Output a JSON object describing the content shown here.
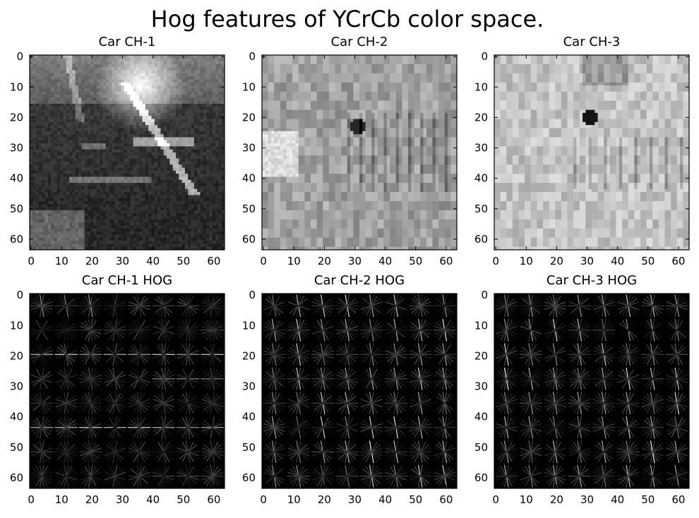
{
  "figure": {
    "title": "Hog features of YCrCb color space."
  },
  "chart_data": [
    {
      "type": "heatmap",
      "title": "Car CH-1",
      "colormap": "gray",
      "content": "car-photo-channel",
      "channel": 1,
      "xlim": [
        0,
        63
      ],
      "ylim": [
        63,
        0
      ],
      "xticks": [
        0,
        10,
        20,
        30,
        40,
        50,
        60
      ],
      "yticks": [
        0,
        10,
        20,
        30,
        40,
        50,
        60
      ]
    },
    {
      "type": "heatmap",
      "title": "Car CH-2",
      "colormap": "gray",
      "content": "car-photo-channel",
      "channel": 2,
      "xlim": [
        0,
        63
      ],
      "ylim": [
        63,
        0
      ],
      "xticks": [
        0,
        10,
        20,
        30,
        40,
        50,
        60
      ],
      "yticks": [
        0,
        10,
        20,
        30,
        40,
        50,
        60
      ]
    },
    {
      "type": "heatmap",
      "title": "Car CH-3",
      "colormap": "gray",
      "content": "car-photo-channel",
      "channel": 3,
      "xlim": [
        0,
        63
      ],
      "ylim": [
        63,
        0
      ],
      "xticks": [
        0,
        10,
        20,
        30,
        40,
        50,
        60
      ],
      "yticks": [
        0,
        10,
        20,
        30,
        40,
        50,
        60
      ]
    },
    {
      "type": "heatmap",
      "title": "Car CH-1 HOG",
      "colormap": "gray",
      "content": "hog-visualization",
      "channel": 1,
      "cell_grid": [
        8,
        8
      ],
      "xlim": [
        0,
        63
      ],
      "ylim": [
        63,
        0
      ],
      "xticks": [
        0,
        10,
        20,
        30,
        40,
        50,
        60
      ],
      "yticks": [
        0,
        10,
        20,
        30,
        40,
        50,
        60
      ]
    },
    {
      "type": "heatmap",
      "title": "Car CH-2 HOG",
      "colormap": "gray",
      "content": "hog-visualization",
      "channel": 2,
      "cell_grid": [
        8,
        8
      ],
      "xlim": [
        0,
        63
      ],
      "ylim": [
        63,
        0
      ],
      "xticks": [
        0,
        10,
        20,
        30,
        40,
        50,
        60
      ],
      "yticks": [
        0,
        10,
        20,
        30,
        40,
        50,
        60
      ]
    },
    {
      "type": "heatmap",
      "title": "Car CH-3 HOG",
      "colormap": "gray",
      "content": "hog-visualization",
      "channel": 3,
      "cell_grid": [
        8,
        8
      ],
      "xlim": [
        0,
        63
      ],
      "ylim": [
        63,
        0
      ],
      "xticks": [
        0,
        10,
        20,
        30,
        40,
        50,
        60
      ],
      "yticks": [
        0,
        10,
        20,
        30,
        40,
        50,
        60
      ]
    }
  ]
}
